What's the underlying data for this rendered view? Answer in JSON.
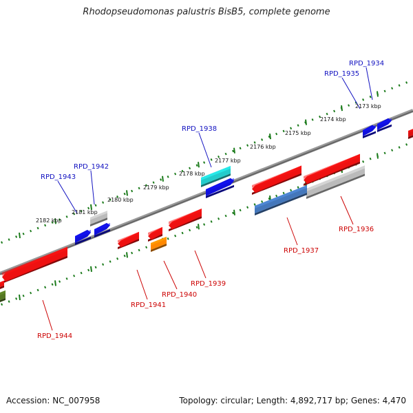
{
  "title": "Rhodopseudomonas palustris BisB5, complete genome",
  "footer": {
    "accession": "Accession: NC_007958",
    "summary": "Topology: circular; Length: 4,892,717 bp; Genes: 4,470"
  },
  "colors": {
    "backbone": "#777777",
    "tick_track": "#1a7a1a",
    "label_forward": "#1010c0",
    "label_reverse": "#cc0000"
  },
  "scale_labels": [
    "2173 kbp",
    "2174 kbp",
    "2175 kbp",
    "2176 kbp",
    "2177 kbp",
    "2178 kbp",
    "2179 kbp",
    "2180 kbp",
    "2181 kbp",
    "2182 kbp"
  ],
  "genes": [
    {
      "label": "RPD_1934",
      "strand": "forward",
      "color": "#1010c0"
    },
    {
      "label": "RPD_1935",
      "strand": "forward",
      "color": "#1010c0"
    },
    {
      "label": "RPD_1938",
      "strand": "forward",
      "color": "#1010c0"
    },
    {
      "label": "RPD_1942",
      "strand": "forward",
      "color": "#1010c0"
    },
    {
      "label": "RPD_1943",
      "strand": "forward",
      "color": "#1010c0"
    },
    {
      "label": "RPD_1936",
      "strand": "reverse",
      "color": "#cc0000"
    },
    {
      "label": "RPD_1937",
      "strand": "reverse",
      "color": "#cc0000"
    },
    {
      "label": "RPD_1939",
      "strand": "reverse",
      "color": "#cc0000"
    },
    {
      "label": "RPD_1940",
      "strand": "reverse",
      "color": "#cc0000"
    },
    {
      "label": "RPD_1941",
      "strand": "reverse",
      "color": "#cc0000"
    },
    {
      "label": "RPD_1944",
      "strand": "reverse",
      "color": "#cc0000"
    }
  ]
}
